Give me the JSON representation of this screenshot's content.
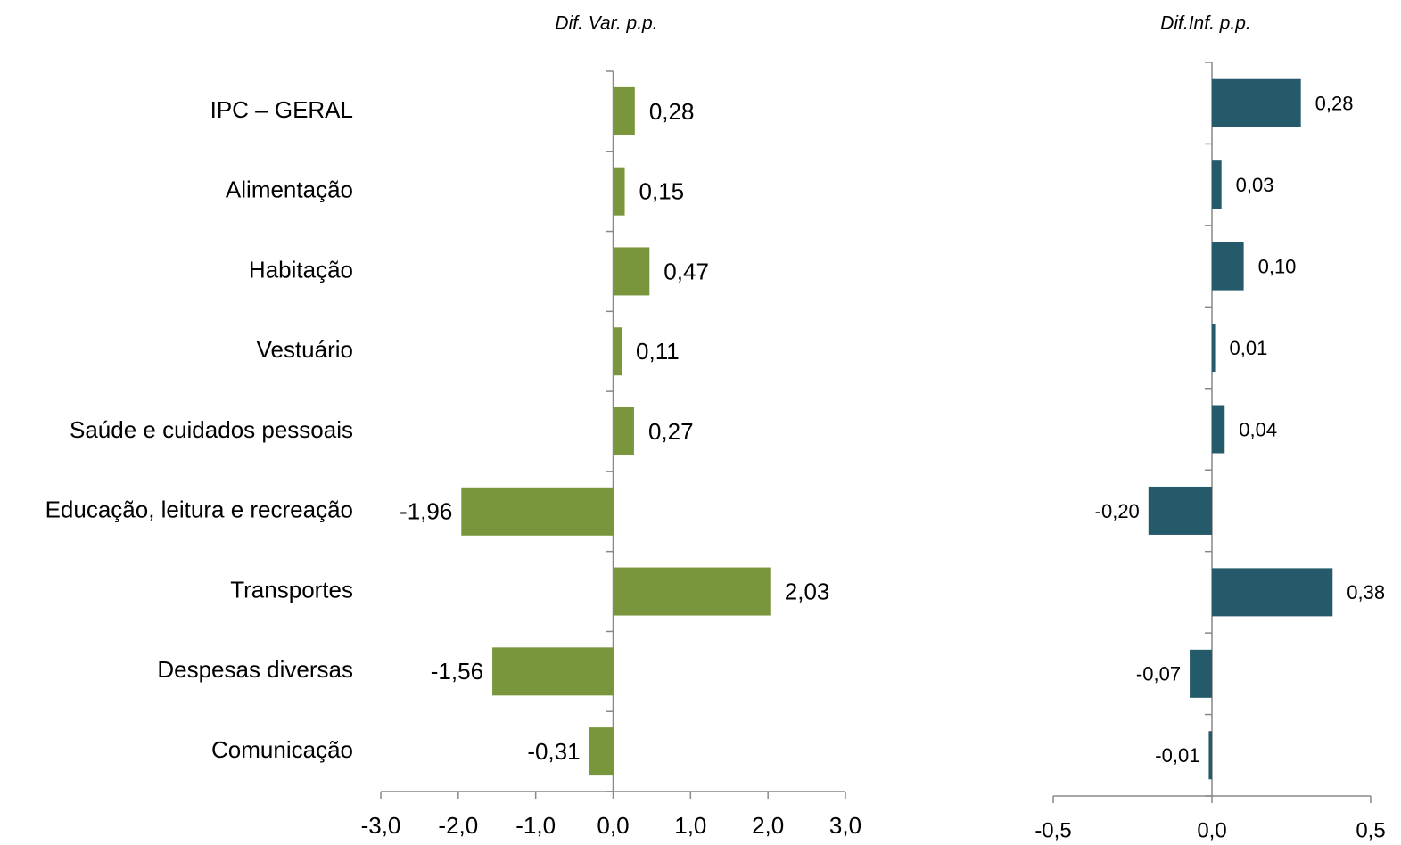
{
  "chart_data": [
    {
      "type": "hbar",
      "title": "Dif. Var. p.p.",
      "categories": [
        "IPC – GERAL",
        "Alimentação",
        "Habitação",
        "Vestuário",
        "Saúde e cuidados pessoais",
        "Educação, leitura e recreação",
        "Transportes",
        "Despesas diversas",
        "Comunicação"
      ],
      "values": [
        0.28,
        0.15,
        0.47,
        0.11,
        0.27,
        -1.96,
        2.03,
        -1.56,
        -0.31
      ],
      "value_labels": [
        "0,28",
        "0,15",
        "0,47",
        "0,11",
        "0,27",
        "-1,96",
        "2,03",
        "-1,56",
        "-0,31"
      ],
      "color": "#7a963c",
      "xlim": [
        -3,
        3
      ],
      "xticks": [
        {
          "value": -3,
          "label": "-3,0"
        },
        {
          "value": -2,
          "label": "-2,0"
        },
        {
          "value": -1,
          "label": "-1,0"
        },
        {
          "value": 0,
          "label": "0,0"
        },
        {
          "value": 1,
          "label": "1,0"
        },
        {
          "value": 2,
          "label": "2,0"
        },
        {
          "value": 3,
          "label": "3,0"
        }
      ]
    },
    {
      "type": "hbar",
      "title": "Dif.Inf. p.p.",
      "values": [
        0.28,
        0.03,
        0.1,
        0.01,
        0.04,
        -0.2,
        0.38,
        -0.07,
        -0.01
      ],
      "value_labels": [
        "0,28",
        "0,03",
        "0,10",
        "0,01",
        "0,04",
        "-0,20",
        "0,38",
        "-0,07",
        "-0,01"
      ],
      "color": "#245a69",
      "xlim": [
        -0.5,
        0.5
      ],
      "xticks": [
        {
          "value": -0.5,
          "label": "-0,5"
        },
        {
          "value": 0,
          "label": "0,0"
        },
        {
          "value": 0.5,
          "label": "0,5"
        }
      ]
    }
  ]
}
